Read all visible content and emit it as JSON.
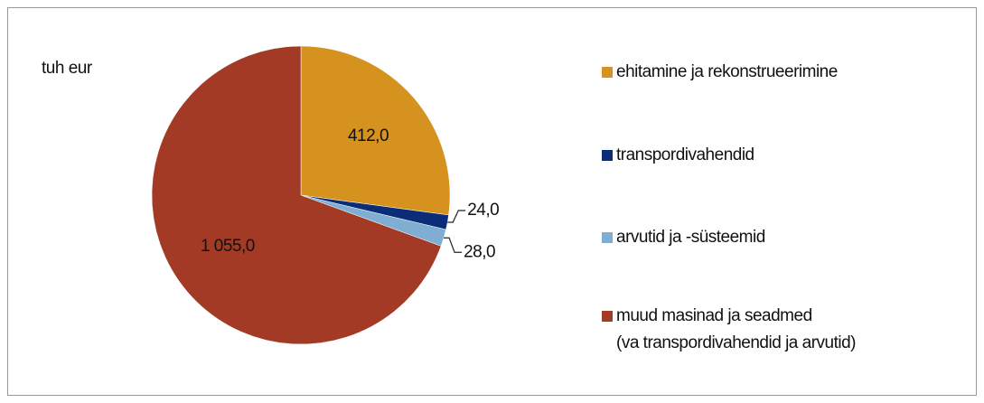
{
  "chart_data": {
    "type": "pie",
    "subtitle": "tuh eur",
    "categories": [
      "ehitamine ja rekonstrueerimine",
      "transpordivahendid",
      "arvutid ja -süsteemid",
      "muud masinad ja seadmed\n(va transpordivahendid ja arvutid)"
    ],
    "values": [
      412.0,
      24.0,
      28.0,
      1055.0
    ],
    "value_labels": [
      "412,0",
      "24,0",
      "28,0",
      "1 055,0"
    ],
    "colors": [
      "#d6921f",
      "#0b2d78",
      "#80aed2",
      "#a23a25"
    ],
    "legend": "right"
  }
}
